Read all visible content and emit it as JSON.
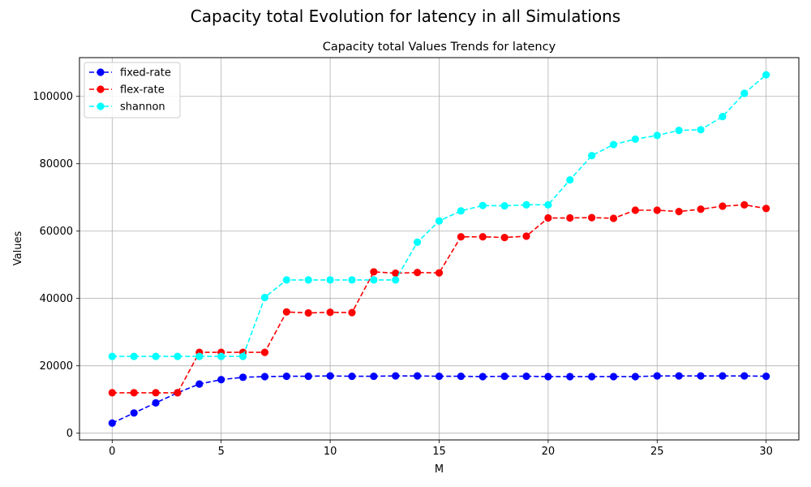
{
  "figure": {
    "suptitle": "Capacity total Evolution for latency in all Simulations"
  },
  "chart_data": {
    "type": "line",
    "title": "Capacity total Values Trends for latency",
    "xlabel": "M",
    "ylabel": "Values",
    "xlim": [
      -1.5,
      31.5
    ],
    "ylim": [
      -2000,
      111500
    ],
    "xticks": [
      0,
      5,
      10,
      15,
      20,
      25,
      30
    ],
    "yticks": [
      0,
      20000,
      40000,
      60000,
      80000,
      100000
    ],
    "grid": true,
    "legend_position": "top-left",
    "x": [
      0,
      1,
      2,
      3,
      4,
      5,
      6,
      7,
      8,
      9,
      10,
      11,
      12,
      13,
      14,
      15,
      16,
      17,
      18,
      19,
      20,
      21,
      22,
      23,
      24,
      25,
      26,
      27,
      28,
      29,
      30
    ],
    "series": [
      {
        "name": "fixed-rate",
        "color": "#0000ff",
        "style": "dashed-circle",
        "values": [
          3000,
          6000,
          9000,
          12000,
          14600,
          15900,
          16600,
          16800,
          16900,
          16900,
          17000,
          16900,
          16900,
          17000,
          17000,
          16900,
          16900,
          16800,
          16900,
          16900,
          16800,
          16800,
          16800,
          16800,
          16800,
          17000,
          17000,
          17000,
          17000,
          17000,
          16900
        ]
      },
      {
        "name": "flex-rate",
        "color": "#ff0000",
        "style": "dashed-circle",
        "values": [
          12000,
          12000,
          12000,
          12000,
          24000,
          24000,
          24000,
          24000,
          36000,
          35700,
          35900,
          35800,
          47900,
          47500,
          47700,
          47600,
          58300,
          58300,
          58100,
          58500,
          63900,
          63900,
          64000,
          63800,
          66200,
          66200,
          65800,
          66500,
          67400,
          67800,
          66700
        ]
      },
      {
        "name": "shannon",
        "color": "#00ffff",
        "style": "dashed-circle",
        "values": [
          22800,
          22800,
          22800,
          22800,
          22800,
          22800,
          22800,
          40300,
          45500,
          45500,
          45500,
          45500,
          45500,
          45500,
          56700,
          63000,
          66000,
          67600,
          67500,
          67800,
          67800,
          75200,
          82400,
          85700,
          87300,
          88400,
          89900,
          90100,
          94000,
          100900,
          106400
        ]
      }
    ]
  }
}
